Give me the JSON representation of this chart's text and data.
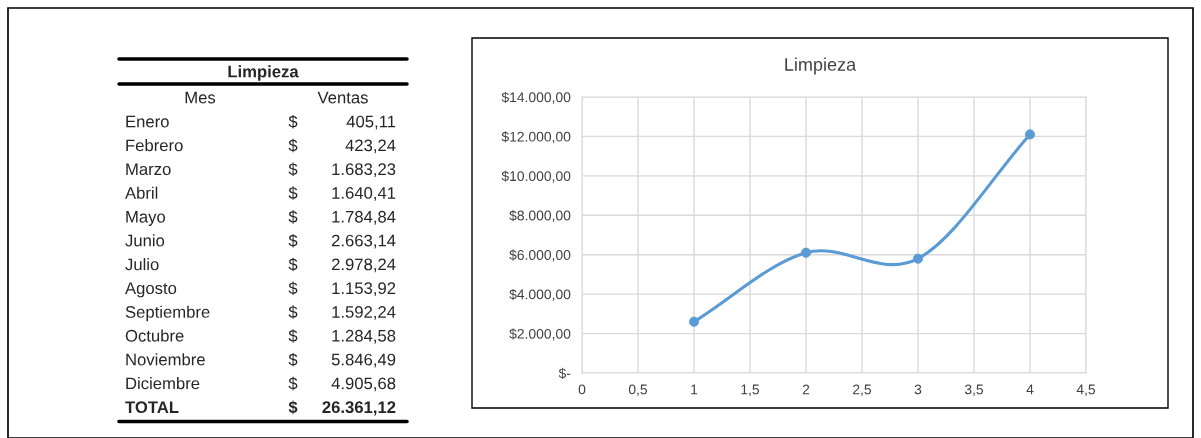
{
  "chart_data": [
    {
      "type": "other",
      "title": "Limpieza",
      "xlabel": "Mes",
      "ylabel": "Ventas",
      "categories": [
        "Enero",
        "Febrero",
        "Marzo",
        "Abril",
        "Mayo",
        "Junio",
        "Julio",
        "Agosto",
        "Septiembre",
        "Octubre",
        "Noviembre",
        "Diciembre",
        "TOTAL"
      ],
      "value_labels": [
        "$ 405,11",
        "$ 423,24",
        "$ 1.683,23",
        "$ 1.640,41",
        "$ 1.784,84",
        "$ 2.663,14",
        "$ 2.978,24",
        "$ 1.153,92",
        "$ 1.592,24",
        "$ 1.284,58",
        "$ 5.846,49",
        "$ 4.905,68",
        "$ 26.361,12"
      ]
    },
    {
      "type": "line",
      "title": "Limpieza",
      "x": [
        1,
        2,
        3,
        4
      ],
      "series": [
        {
          "color": "#5b9bd5",
          "values": [
            2600,
            6100,
            5800,
            12100
          ]
        }
      ],
      "xlim": [
        0,
        4.5
      ],
      "ylim": [
        0,
        14000
      ],
      "xticks": [
        0,
        {
          "value": 0.5,
          "label": "0,5"
        },
        1,
        {
          "value": 1.5,
          "label": "1,5"
        },
        2,
        {
          "value": 2.5,
          "label": "2,5"
        },
        3,
        {
          "value": 3.5,
          "label": "3,5"
        },
        4,
        {
          "value": 4.5,
          "label": "4,5"
        }
      ],
      "yticks": [
        {
          "value": 0,
          "label": "$-"
        },
        {
          "value": 2000,
          "label": "$2.000,00"
        },
        {
          "value": 4000,
          "label": "$4.000,00"
        },
        {
          "value": 6000,
          "label": "$6.000,00"
        },
        {
          "value": 8000,
          "label": "$8.000,00"
        },
        {
          "value": 10000,
          "label": "$10.000,00"
        },
        {
          "value": 12000,
          "label": "$12.000,00"
        },
        {
          "value": 14000,
          "label": "$14.000,00"
        }
      ],
      "grid": true,
      "marker": "circle",
      "line_style": "solid"
    }
  ]
}
